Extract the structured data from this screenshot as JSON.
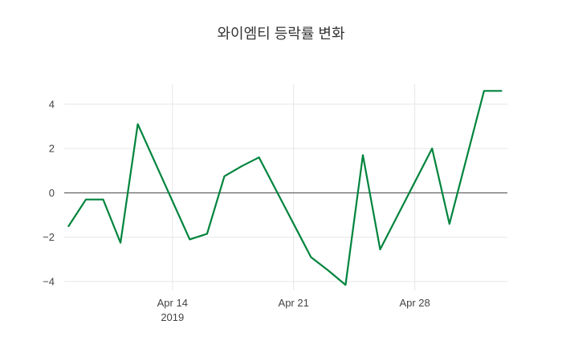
{
  "title": "와이엠티 등락률 변화",
  "chart_data": {
    "type": "line",
    "title": "와이엠티 등락률 변화",
    "xlabel": "",
    "ylabel": "",
    "ylim": [
      -4.4,
      4.9
    ],
    "grid": true,
    "zero_line": true,
    "legend": "none",
    "y_ticks": [
      -4,
      -2,
      0,
      2,
      4
    ],
    "x_ticks": [
      {
        "date": "2019-04-14",
        "label": "Apr 14",
        "sublabel": "2019"
      },
      {
        "date": "2019-04-21",
        "label": "Apr 21",
        "sublabel": ""
      },
      {
        "date": "2019-04-28",
        "label": "Apr 28",
        "sublabel": ""
      }
    ],
    "colors": {
      "line": "#00843d",
      "grid": "#e6e6e6",
      "zero_line": "#444444",
      "text": "#444444",
      "background": "#ffffff"
    },
    "series": [
      {
        "name": "등락률",
        "color": "#00843d",
        "points": [
          {
            "date": "2019-04-08",
            "value": -1.5
          },
          {
            "date": "2019-04-09",
            "value": -0.3
          },
          {
            "date": "2019-04-10",
            "value": -0.3
          },
          {
            "date": "2019-04-11",
            "value": -2.25
          },
          {
            "date": "2019-04-12",
            "value": 3.1
          },
          {
            "date": "2019-04-15",
            "value": -2.1
          },
          {
            "date": "2019-04-16",
            "value": -1.85
          },
          {
            "date": "2019-04-17",
            "value": 0.75
          },
          {
            "date": "2019-04-18",
            "value": 1.2
          },
          {
            "date": "2019-04-19",
            "value": 1.6
          },
          {
            "date": "2019-04-22",
            "value": -2.9
          },
          {
            "date": "2019-04-23",
            "value": -3.5
          },
          {
            "date": "2019-04-24",
            "value": -4.15
          },
          {
            "date": "2019-04-25",
            "value": 1.7
          },
          {
            "date": "2019-04-26",
            "value": -2.55
          },
          {
            "date": "2019-04-29",
            "value": 2.0
          },
          {
            "date": "2019-04-30",
            "value": -1.4
          },
          {
            "date": "2019-05-02",
            "value": 4.6
          },
          {
            "date": "2019-05-03",
            "value": 4.6
          }
        ]
      }
    ]
  }
}
